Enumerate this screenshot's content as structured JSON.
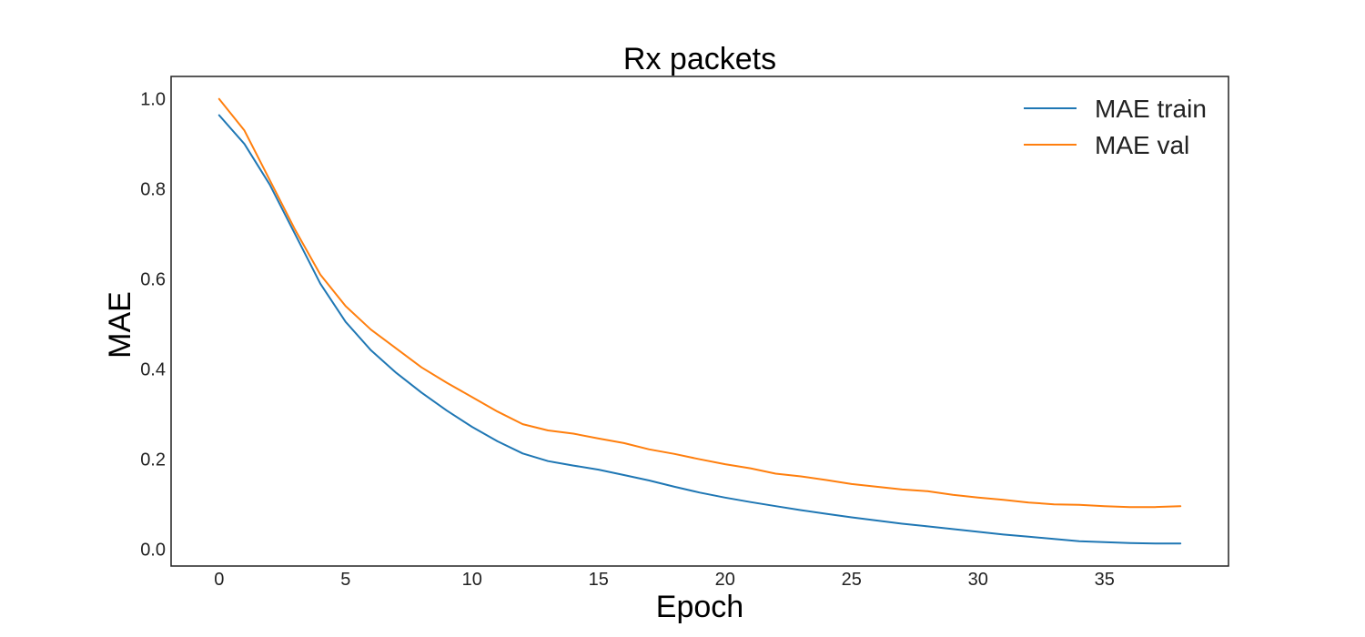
{
  "chart_data": {
    "type": "line",
    "title": "Rx packets",
    "xlabel": "Epoch",
    "ylabel": "MAE",
    "xlim": [
      -1.9,
      39.9
    ],
    "ylim": [
      -0.037,
      1.05
    ],
    "x_ticks": [
      0,
      5,
      10,
      15,
      20,
      25,
      30,
      35
    ],
    "y_ticks": [
      "0.0",
      "0.2",
      "0.4",
      "0.6",
      "0.8",
      "1.0"
    ],
    "grid": false,
    "legend": "top-right",
    "x": [
      0,
      1,
      2,
      3,
      4,
      5,
      6,
      7,
      8,
      9,
      10,
      11,
      12,
      13,
      14,
      15,
      16,
      17,
      18,
      19,
      20,
      21,
      22,
      23,
      24,
      25,
      26,
      27,
      28,
      29,
      30,
      31,
      32,
      33,
      34,
      35,
      36,
      37,
      38
    ],
    "series": [
      {
        "name": "MAE train",
        "color": "#1f77b4",
        "values": [
          0.964,
          0.9,
          0.81,
          0.7,
          0.59,
          0.505,
          0.442,
          0.392,
          0.348,
          0.308,
          0.272,
          0.24,
          0.213,
          0.196,
          0.186,
          0.177,
          0.165,
          0.153,
          0.139,
          0.126,
          0.115,
          0.105,
          0.096,
          0.087,
          0.079,
          0.071,
          0.064,
          0.057,
          0.051,
          0.045,
          0.039,
          0.033,
          0.028,
          0.023,
          0.018,
          0.016,
          0.014,
          0.013,
          0.013
        ]
      },
      {
        "name": "MAE val",
        "color": "#ff7f0e",
        "values": [
          1.0,
          0.93,
          0.82,
          0.71,
          0.61,
          0.54,
          0.488,
          0.446,
          0.404,
          0.37,
          0.338,
          0.306,
          0.278,
          0.264,
          0.257,
          0.246,
          0.236,
          0.222,
          0.212,
          0.2,
          0.189,
          0.18,
          0.168,
          0.162,
          0.154,
          0.145,
          0.139,
          0.133,
          0.129,
          0.121,
          0.115,
          0.11,
          0.104,
          0.1,
          0.099,
          0.096,
          0.094,
          0.094,
          0.096
        ]
      }
    ]
  }
}
